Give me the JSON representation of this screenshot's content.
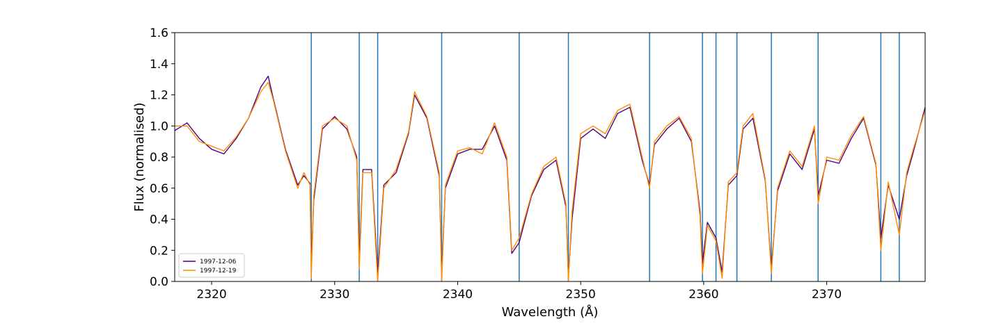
{
  "chart_data": {
    "type": "line",
    "xlabel": "Wavelength (Å)",
    "ylabel": "Flux (normalised)",
    "xlim": [
      2317,
      2378
    ],
    "ylim": [
      0.0,
      1.6
    ],
    "x_ticks": [
      2320,
      2330,
      2340,
      2350,
      2360,
      2370
    ],
    "x_tick_labels": [
      "2320",
      "2330",
      "2340",
      "2350",
      "2360",
      "2370"
    ],
    "y_ticks": [
      0.0,
      0.2,
      0.4,
      0.6,
      0.8,
      1.0,
      1.2,
      1.4,
      1.6
    ],
    "y_tick_labels": [
      "0.0",
      "0.2",
      "0.4",
      "0.6",
      "0.8",
      "1.0",
      "1.2",
      "1.4",
      "1.6"
    ],
    "grid": false,
    "legend_position": "lower-left",
    "vertical_lines": {
      "color": "#1f77b4",
      "x": [
        2328.1,
        2332.0,
        2333.5,
        2338.7,
        2345.0,
        2349.0,
        2355.6,
        2359.9,
        2361.0,
        2362.7,
        2365.5,
        2369.3,
        2374.4,
        2375.9
      ]
    },
    "series": [
      {
        "name": "1997-12-06",
        "color": "#4b0082",
        "x": [
          2317.0,
          2318.0,
          2319.0,
          2320.0,
          2321.0,
          2322.0,
          2323.0,
          2324.0,
          2324.6,
          2325.0,
          2326.0,
          2327.0,
          2327.5,
          2328.0,
          2328.1,
          2328.3,
          2329.0,
          2330.0,
          2331.0,
          2331.8,
          2332.0,
          2332.3,
          2333.0,
          2333.5,
          2334.0,
          2335.0,
          2336.0,
          2336.5,
          2337.5,
          2338.5,
          2338.7,
          2339.0,
          2340.0,
          2341.0,
          2342.0,
          2343.0,
          2344.0,
          2344.4,
          2345.0,
          2346.0,
          2347.0,
          2348.0,
          2348.8,
          2349.0,
          2349.3,
          2350.0,
          2351.0,
          2352.0,
          2353.0,
          2354.0,
          2355.0,
          2355.6,
          2356.0,
          2357.0,
          2358.0,
          2359.0,
          2359.7,
          2359.9,
          2360.3,
          2361.0,
          2361.5,
          2362.0,
          2362.7,
          2363.2,
          2364.0,
          2365.0,
          2365.5,
          2366.0,
          2367.0,
          2368.0,
          2369.0,
          2369.3,
          2370.0,
          2371.0,
          2372.0,
          2373.0,
          2374.0,
          2374.4,
          2375.0,
          2375.9,
          2376.5,
          2377.0,
          2378.0
        ],
        "y": [
          0.97,
          1.02,
          0.92,
          0.85,
          0.82,
          0.92,
          1.05,
          1.25,
          1.32,
          1.18,
          0.85,
          0.62,
          0.68,
          0.63,
          0.1,
          0.52,
          0.98,
          1.06,
          0.98,
          0.8,
          0.12,
          0.72,
          0.72,
          0.05,
          0.62,
          0.7,
          0.95,
          1.2,
          1.05,
          0.68,
          0.05,
          0.6,
          0.82,
          0.85,
          0.85,
          1.0,
          0.78,
          0.18,
          0.25,
          0.55,
          0.72,
          0.78,
          0.48,
          0.03,
          0.4,
          0.92,
          0.98,
          0.92,
          1.08,
          1.12,
          0.78,
          0.62,
          0.88,
          0.98,
          1.05,
          0.9,
          0.45,
          0.12,
          0.38,
          0.28,
          0.06,
          0.62,
          0.68,
          0.98,
          1.05,
          0.65,
          0.08,
          0.58,
          0.82,
          0.72,
          0.98,
          0.55,
          0.78,
          0.76,
          0.92,
          1.05,
          0.75,
          0.28,
          0.62,
          0.4,
          0.68,
          0.82,
          1.12
        ]
      },
      {
        "name": "1997-12-19",
        "color": "#ff8c00",
        "x": [
          2317.0,
          2318.0,
          2319.0,
          2320.0,
          2321.0,
          2322.0,
          2323.0,
          2324.0,
          2324.6,
          2325.0,
          2326.0,
          2327.0,
          2327.5,
          2328.0,
          2328.1,
          2328.3,
          2329.0,
          2330.0,
          2331.0,
          2331.8,
          2332.0,
          2332.3,
          2333.0,
          2333.5,
          2334.0,
          2335.0,
          2336.0,
          2336.5,
          2337.5,
          2338.5,
          2338.7,
          2339.0,
          2340.0,
          2341.0,
          2342.0,
          2343.0,
          2344.0,
          2344.4,
          2345.0,
          2346.0,
          2347.0,
          2348.0,
          2348.8,
          2349.0,
          2349.3,
          2350.0,
          2351.0,
          2352.0,
          2353.0,
          2354.0,
          2355.0,
          2355.6,
          2356.0,
          2357.0,
          2358.0,
          2359.0,
          2359.7,
          2359.9,
          2360.3,
          2361.0,
          2361.5,
          2362.0,
          2362.7,
          2363.2,
          2364.0,
          2365.0,
          2365.5,
          2366.0,
          2367.0,
          2368.0,
          2369.0,
          2369.3,
          2370.0,
          2371.0,
          2372.0,
          2373.0,
          2374.0,
          2374.4,
          2375.0,
          2375.9,
          2376.5,
          2377.0,
          2378.0
        ],
        "y": [
          1.0,
          1.0,
          0.9,
          0.87,
          0.84,
          0.93,
          1.05,
          1.22,
          1.28,
          1.17,
          0.84,
          0.6,
          0.7,
          0.62,
          0.02,
          0.55,
          1.0,
          1.05,
          1.0,
          0.78,
          0.08,
          0.7,
          0.7,
          0.0,
          0.6,
          0.72,
          0.96,
          1.22,
          1.06,
          0.7,
          0.0,
          0.62,
          0.84,
          0.86,
          0.82,
          1.02,
          0.8,
          0.2,
          0.28,
          0.56,
          0.74,
          0.8,
          0.5,
          0.0,
          0.45,
          0.95,
          1.0,
          0.95,
          1.1,
          1.14,
          0.8,
          0.6,
          0.9,
          1.0,
          1.06,
          0.92,
          0.42,
          0.05,
          0.36,
          0.26,
          0.02,
          0.64,
          0.7,
          1.0,
          1.08,
          0.66,
          0.05,
          0.6,
          0.84,
          0.74,
          1.0,
          0.5,
          0.8,
          0.78,
          0.94,
          1.06,
          0.76,
          0.2,
          0.64,
          0.3,
          0.7,
          0.84,
          1.1
        ]
      }
    ]
  }
}
